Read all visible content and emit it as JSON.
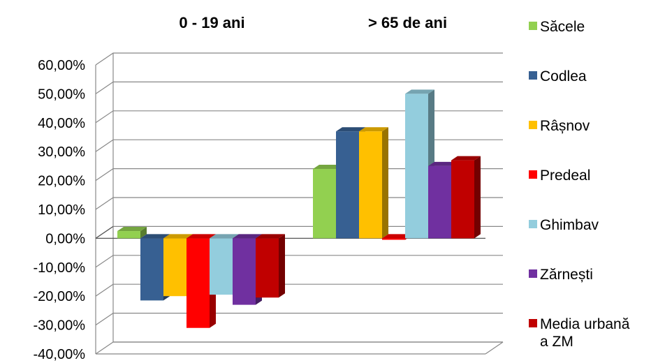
{
  "chart_data": {
    "type": "bar",
    "categories": [
      "0 - 19 ani",
      "> 65 de ani"
    ],
    "series": [
      {
        "name": "Săcele",
        "values": [
          2.5,
          24
        ],
        "color": "#92D050"
      },
      {
        "name": "Codlea",
        "values": [
          -21.5,
          37
        ],
        "color": "#376092"
      },
      {
        "name": "Râșnov",
        "values": [
          -20,
          37
        ],
        "color": "#FFC000"
      },
      {
        "name": "Predeal",
        "values": [
          -31,
          -0.5
        ],
        "color": "#FF0000"
      },
      {
        "name": "Ghimbav",
        "values": [
          -19.5,
          50
        ],
        "color": "#93CDDD"
      },
      {
        "name": "Zărnești",
        "values": [
          -23,
          25
        ],
        "color": "#7030A0"
      },
      {
        "name": "Media urbană a ZM",
        "values": [
          -20.5,
          27
        ],
        "color": "#C00000"
      }
    ],
    "ylim": [
      -40,
      60
    ],
    "yticks": [
      "-40,00%",
      "-30,00%",
      "-20,00%",
      "-10,00%",
      "0,00%",
      "10,00%",
      "20,00%",
      "30,00%",
      "40,00%",
      "50,00%",
      "60,00%"
    ],
    "grid": true,
    "legend_position": "right",
    "title": "",
    "xlabel": "",
    "ylabel": ""
  }
}
